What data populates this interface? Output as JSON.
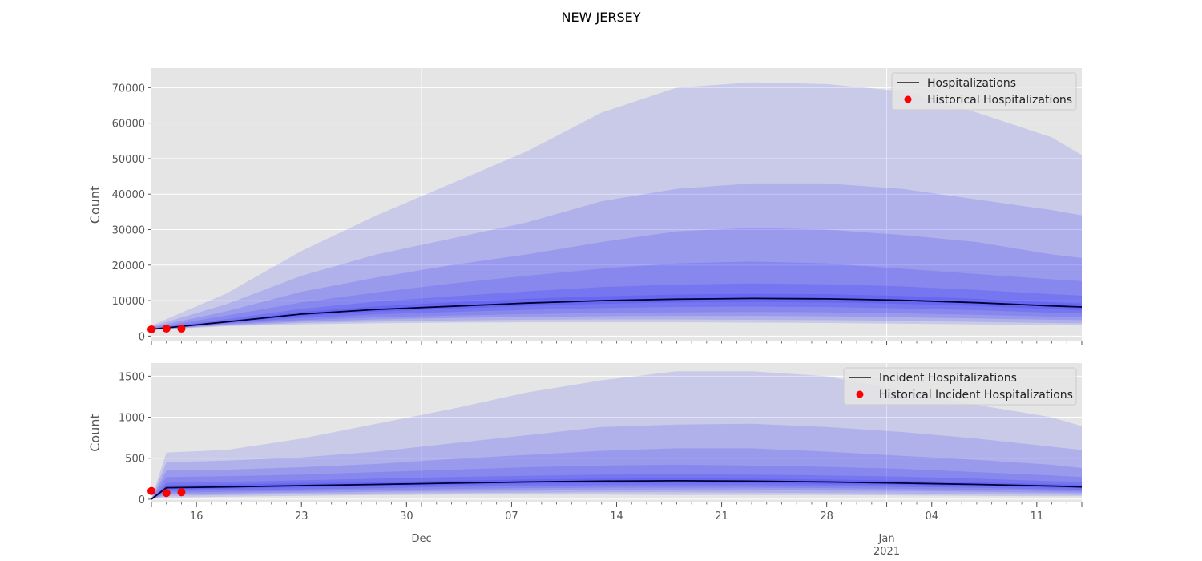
{
  "title": "NEW JERSEY",
  "colors": {
    "panel_bg": "#e5e5e5",
    "grid": "#ffffff",
    "band": "#0000ff",
    "median_line": "#000033",
    "historical": "#ff0000"
  },
  "x_axis": {
    "start": "2020-11-13",
    "end": "2021-01-14",
    "major_ticks": [
      {
        "date": "2020-11-16",
        "label": "16"
      },
      {
        "date": "2020-11-23",
        "label": "23"
      },
      {
        "date": "2020-11-30",
        "label": "30"
      },
      {
        "date": "2020-12-07",
        "label": "07"
      },
      {
        "date": "2020-12-14",
        "label": "14"
      },
      {
        "date": "2020-12-21",
        "label": "21"
      },
      {
        "date": "2020-12-28",
        "label": "28"
      },
      {
        "date": "2021-01-04",
        "label": "04"
      },
      {
        "date": "2021-01-11",
        "label": "11"
      }
    ],
    "month_ticks": [
      {
        "date": "2020-12-01",
        "label": "Dec"
      },
      {
        "date": "2021-01-01",
        "label": "Jan",
        "sublabel": "2021"
      }
    ]
  },
  "chart_data": [
    {
      "type": "area",
      "ylabel": "Count",
      "ylim": [
        -1500,
        75500
      ],
      "yticks": [
        0,
        10000,
        20000,
        30000,
        40000,
        50000,
        60000,
        70000
      ],
      "grid": true,
      "legend_position": "top-right",
      "legend": [
        "Hospitalizations",
        "Historical Hospitalizations"
      ],
      "x": [
        "2020-11-13",
        "2020-11-18",
        "2020-11-23",
        "2020-11-28",
        "2020-12-03",
        "2020-12-08",
        "2020-12-13",
        "2020-12-18",
        "2020-12-23",
        "2020-12-28",
        "2021-01-02",
        "2021-01-07",
        "2021-01-12",
        "2021-01-14"
      ],
      "median": [
        1900,
        4000,
        6200,
        7500,
        8400,
        9300,
        10000,
        10400,
        10600,
        10500,
        10100,
        9400,
        8500,
        8200
      ],
      "bands": [
        {
          "low": [
            1700,
            2800,
            3300,
            3600,
            3800,
            3900,
            3900,
            3900,
            3800,
            3700,
            3500,
            3300,
            3100,
            3000
          ],
          "high": [
            3000,
            12000,
            24000,
            34000,
            43000,
            52000,
            63000,
            70000,
            71500,
            71000,
            69000,
            63000,
            56000,
            51000
          ]
        },
        {
          "low": [
            1750,
            3000,
            3700,
            4100,
            4400,
            4600,
            4700,
            4700,
            4600,
            4500,
            4300,
            4000,
            3700,
            3600
          ],
          "high": [
            2700,
            9000,
            17000,
            23000,
            27500,
            32000,
            38000,
            41500,
            43000,
            43000,
            41500,
            38500,
            35500,
            34000
          ]
        },
        {
          "low": [
            1800,
            3200,
            4100,
            4700,
            5100,
            5400,
            5600,
            5700,
            5700,
            5600,
            5300,
            5000,
            4600,
            4500
          ],
          "high": [
            2500,
            7000,
            12500,
            16500,
            20000,
            23000,
            26500,
            29500,
            30500,
            30000,
            28500,
            26500,
            23000,
            22000
          ]
        },
        {
          "low": [
            1850,
            3400,
            4500,
            5300,
            5800,
            6200,
            6500,
            6700,
            6800,
            6700,
            6400,
            6000,
            5500,
            5300
          ],
          "high": [
            2300,
            5800,
            9500,
            12300,
            14800,
            17000,
            19000,
            20500,
            21000,
            20500,
            19000,
            17500,
            16000,
            15500
          ]
        },
        {
          "low": [
            1880,
            3600,
            5100,
            6100,
            6800,
            7400,
            7900,
            8200,
            8300,
            8200,
            7800,
            7300,
            6600,
            6400
          ],
          "high": [
            2100,
            4800,
            7700,
            9700,
            11200,
            12600,
            13800,
            14500,
            14800,
            14600,
            14000,
            13000,
            11800,
            11400
          ]
        },
        {
          "low": [
            1890,
            3800,
            5700,
            6900,
            7700,
            8500,
            9100,
            9500,
            9600,
            9500,
            9100,
            8500,
            7600,
            7300
          ],
          "high": [
            2000,
            4300,
            6800,
            8400,
            9500,
            10500,
            11200,
            11700,
            11900,
            11800,
            11300,
            10500,
            9500,
            9200
          ]
        }
      ],
      "historical": {
        "x": [
          "2020-11-13",
          "2020-11-14",
          "2020-11-15"
        ],
        "y": [
          1900,
          2100,
          2100
        ]
      }
    },
    {
      "type": "area",
      "ylabel": "Count",
      "ylim": [
        -40,
        1660
      ],
      "yticks": [
        0,
        500,
        1000,
        1500
      ],
      "grid": true,
      "legend_position": "top-right",
      "legend": [
        "Incident Hospitalizations",
        "Historical Incident Hospitalizations"
      ],
      "x": [
        "2020-11-13",
        "2020-11-14",
        "2020-11-18",
        "2020-11-23",
        "2020-11-28",
        "2020-12-03",
        "2020-12-08",
        "2020-12-13",
        "2020-12-18",
        "2020-12-23",
        "2020-12-28",
        "2021-01-02",
        "2021-01-07",
        "2021-01-12",
        "2021-01-14"
      ],
      "median": [
        0,
        140,
        150,
        165,
        180,
        195,
        210,
        220,
        225,
        220,
        210,
        195,
        180,
        160,
        150
      ],
      "bands": [
        {
          "low": [
            0,
            20,
            30,
            40,
            50,
            55,
            55,
            55,
            50,
            50,
            50,
            45,
            40,
            35,
            35
          ],
          "high": [
            0,
            570,
            600,
            740,
            920,
            1100,
            1300,
            1450,
            1560,
            1560,
            1500,
            1320,
            1150,
            1000,
            890
          ]
        },
        {
          "low": [
            0,
            40,
            50,
            60,
            70,
            75,
            80,
            85,
            85,
            80,
            75,
            70,
            60,
            55,
            50
          ],
          "high": [
            0,
            450,
            470,
            510,
            580,
            680,
            780,
            880,
            910,
            920,
            880,
            820,
            740,
            640,
            600
          ]
        },
        {
          "low": [
            0,
            60,
            70,
            80,
            90,
            100,
            105,
            110,
            110,
            110,
            105,
            100,
            90,
            80,
            75
          ],
          "high": [
            0,
            350,
            360,
            390,
            430,
            490,
            540,
            590,
            620,
            620,
            580,
            530,
            480,
            420,
            380
          ]
        },
        {
          "low": [
            0,
            80,
            90,
            100,
            110,
            125,
            135,
            140,
            140,
            140,
            135,
            125,
            115,
            100,
            95
          ],
          "high": [
            0,
            270,
            280,
            300,
            330,
            360,
            390,
            410,
            420,
            410,
            395,
            370,
            330,
            290,
            270
          ]
        },
        {
          "low": [
            0,
            100,
            110,
            120,
            135,
            150,
            160,
            170,
            170,
            170,
            160,
            150,
            140,
            120,
            115
          ],
          "high": [
            0,
            200,
            210,
            230,
            250,
            270,
            285,
            300,
            305,
            300,
            290,
            275,
            250,
            220,
            210
          ]
        },
        {
          "low": [
            0,
            120,
            130,
            145,
            160,
            175,
            190,
            195,
            200,
            195,
            185,
            175,
            160,
            140,
            135
          ],
          "high": [
            0,
            170,
            180,
            195,
            210,
            225,
            240,
            250,
            255,
            250,
            240,
            225,
            205,
            185,
            175
          ]
        }
      ],
      "historical": {
        "x": [
          "2020-11-13",
          "2020-11-14",
          "2020-11-15"
        ],
        "y": [
          100,
          75,
          85
        ]
      }
    }
  ]
}
